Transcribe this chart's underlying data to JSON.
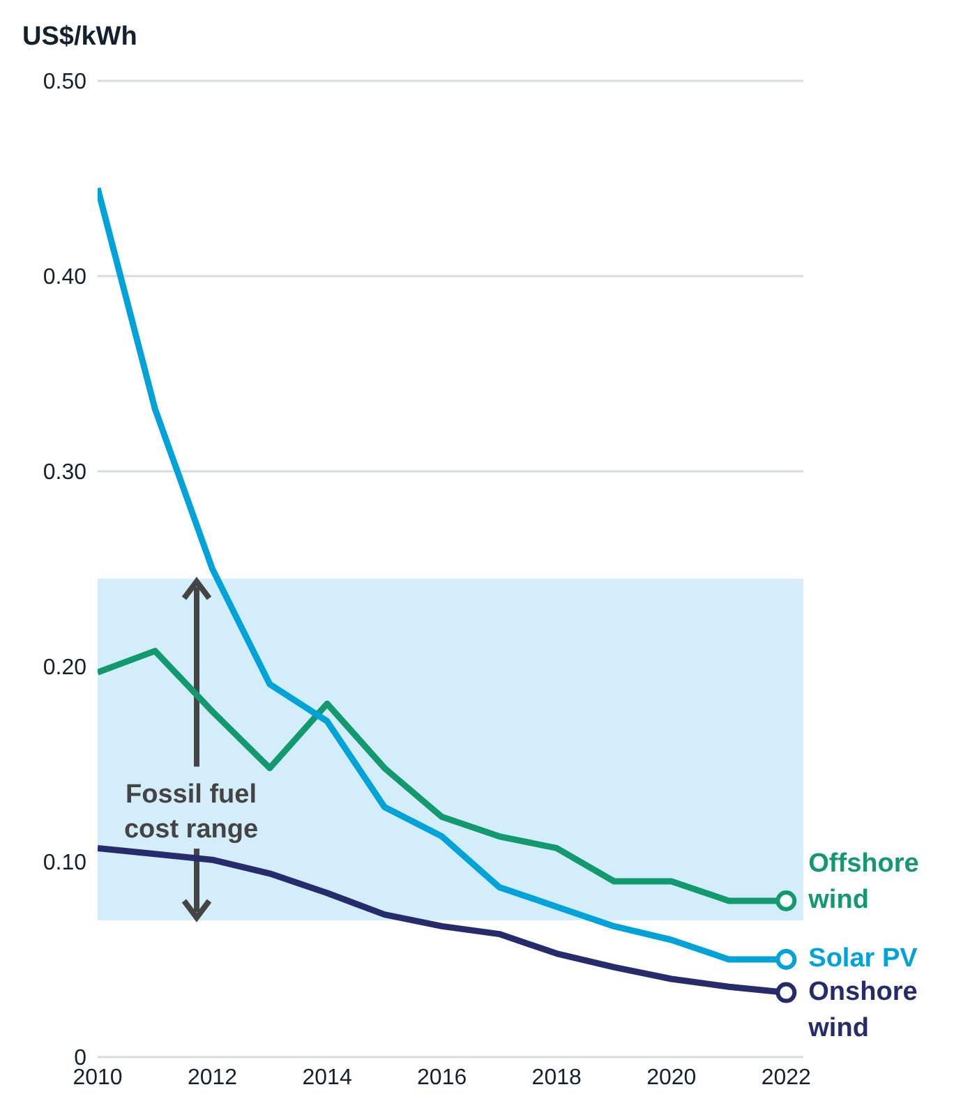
{
  "chart_data": {
    "type": "line",
    "ylabel": "US$/kWh",
    "x": [
      2010,
      2011,
      2012,
      2013,
      2014,
      2015,
      2016,
      2017,
      2018,
      2019,
      2020,
      2021,
      2022
    ],
    "series": [
      {
        "name": "Offshore wind",
        "color": "#12996e",
        "values": [
          0.197,
          0.208,
          0.177,
          0.148,
          0.181,
          0.148,
          0.123,
          0.113,
          0.107,
          0.09,
          0.09,
          0.08,
          0.08
        ]
      },
      {
        "name": "Solar PV",
        "color": "#00a3d9",
        "values": [
          0.445,
          0.332,
          0.25,
          0.191,
          0.172,
          0.128,
          0.113,
          0.087,
          0.077,
          0.067,
          0.06,
          0.05,
          0.05
        ]
      },
      {
        "name": "Onshore wind",
        "color": "#262c6b",
        "values": [
          0.107,
          0.104,
          0.101,
          0.094,
          0.084,
          0.073,
          0.067,
          0.063,
          0.053,
          0.046,
          0.04,
          0.036,
          0.033
        ]
      }
    ],
    "xlim": [
      2010,
      2022.3
    ],
    "xticks": [
      2010,
      2012,
      2014,
      2016,
      2018,
      2020,
      2022
    ],
    "ylim": [
      0,
      0.5
    ],
    "yticks": [
      0,
      {
        "value": 0.1,
        "label": "0.10"
      },
      {
        "value": 0.2,
        "label": "0.20"
      },
      {
        "value": 0.3,
        "label": "0.30"
      },
      {
        "value": 0.4,
        "label": "0.40"
      },
      {
        "value": 0.5,
        "label": "0.50"
      }
    ],
    "bands": [
      {
        "axis": "y",
        "from": 0.07,
        "to": 0.245,
        "label": "Fossil fuel cost range",
        "color": "#d4edfa"
      }
    ],
    "grid": "y",
    "line_style": "solid"
  }
}
